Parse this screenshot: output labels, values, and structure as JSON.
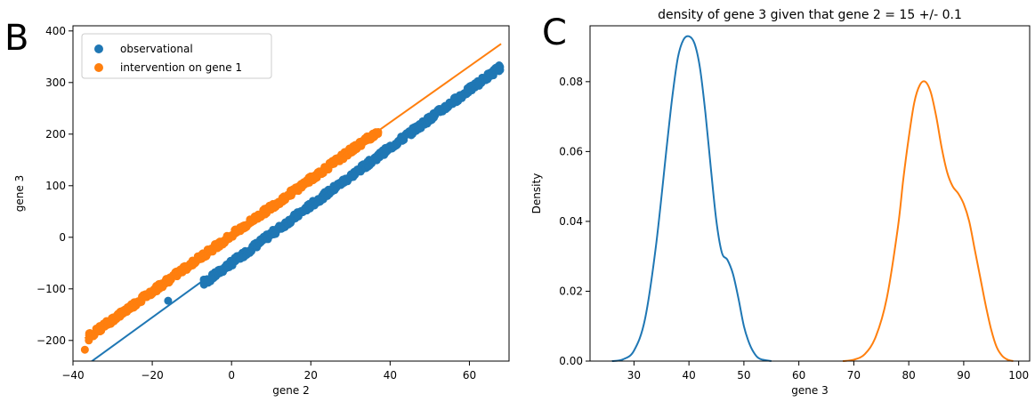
{
  "panel_labels": {
    "left": "B",
    "right": "C"
  },
  "colors": {
    "observational": "#1f77b4",
    "intervention": "#ff7f0e"
  },
  "chart_data": [
    {
      "type": "scatter",
      "title": "",
      "xlabel": "gene 2",
      "ylabel": "gene 3",
      "xlim": [
        -40,
        70
      ],
      "ylim": [
        -240,
        410
      ],
      "xticks": [
        -40,
        -20,
        0,
        20,
        40,
        60
      ],
      "xtick_labels": [
        "−40",
        "−20",
        "0",
        "20",
        "40",
        "60"
      ],
      "yticks": [
        -200,
        -100,
        0,
        100,
        200,
        300,
        400
      ],
      "ytick_labels": [
        "−200",
        "−100",
        "0",
        "100",
        "200",
        "300",
        "400"
      ],
      "grid": false,
      "legend_position": "upper-left",
      "series": [
        {
          "name": "observational",
          "color": "#1f77b4",
          "scatter_band": {
            "x_start": -7,
            "x_end": 68,
            "intercept": -50,
            "slope": 5.6,
            "spread": 6
          },
          "outlier_points": [
            [
              -16,
              -123
            ],
            [
              -7,
              -82
            ],
            [
              -5,
              -79
            ]
          ],
          "fit_line": {
            "x": [
              -37,
              68
            ],
            "y": [
              -250,
              335
            ]
          }
        },
        {
          "name": "intervention on gene 1",
          "color": "#ff7f0e",
          "scatter_band": {
            "x_start": -36,
            "x_end": 37,
            "intercept": 4,
            "slope": 5.45,
            "spread": 6
          },
          "outlier_points": [
            [
              -37,
              -218
            ],
            [
              -36,
              -200
            ],
            [
              37,
              204
            ]
          ],
          "fit_line": {
            "x": [
              -37,
              68
            ],
            "y": [
              -196,
              375
            ]
          }
        }
      ]
    },
    {
      "type": "line",
      "title": "density of gene 3 given that gene 2 = 15 +/- 0.1",
      "xlabel": "gene 3",
      "ylabel": "Density",
      "xlim": [
        22,
        102
      ],
      "ylim": [
        0,
        0.096
      ],
      "xticks": [
        30,
        40,
        50,
        60,
        70,
        80,
        90,
        100
      ],
      "xtick_labels": [
        "30",
        "40",
        "50",
        "60",
        "70",
        "80",
        "90",
        "100"
      ],
      "yticks": [
        0,
        0.02,
        0.04,
        0.06,
        0.08
      ],
      "ytick_labels": [
        "0.00",
        "0.02",
        "0.04",
        "0.06",
        "0.08"
      ],
      "grid": false,
      "series": [
        {
          "color": "#1f77b4",
          "x": [
            26,
            28,
            30,
            32,
            34,
            36,
            37,
            38,
            39,
            40,
            41,
            42,
            43,
            44,
            45,
            46,
            47,
            48,
            49,
            50,
            51,
            52,
            53,
            55
          ],
          "y": [
            0,
            0.0005,
            0.003,
            0.012,
            0.033,
            0.062,
            0.076,
            0.087,
            0.092,
            0.093,
            0.091,
            0.084,
            0.071,
            0.055,
            0.04,
            0.031,
            0.029,
            0.025,
            0.018,
            0.01,
            0.005,
            0.002,
            0.0006,
            0
          ]
        },
        {
          "color": "#ff7f0e",
          "x": [
            68,
            70,
            72,
            74,
            76,
            78,
            79,
            80,
            81,
            82,
            83,
            84,
            85,
            86,
            87,
            88,
            89,
            90,
            91,
            92,
            93,
            94,
            95,
            96,
            97,
            98,
            99
          ],
          "y": [
            0,
            0.0004,
            0.002,
            0.007,
            0.018,
            0.038,
            0.052,
            0.064,
            0.074,
            0.079,
            0.08,
            0.077,
            0.07,
            0.061,
            0.054,
            0.05,
            0.048,
            0.045,
            0.04,
            0.032,
            0.024,
            0.016,
            0.009,
            0.004,
            0.0015,
            0.0004,
            0
          ]
        }
      ]
    }
  ]
}
